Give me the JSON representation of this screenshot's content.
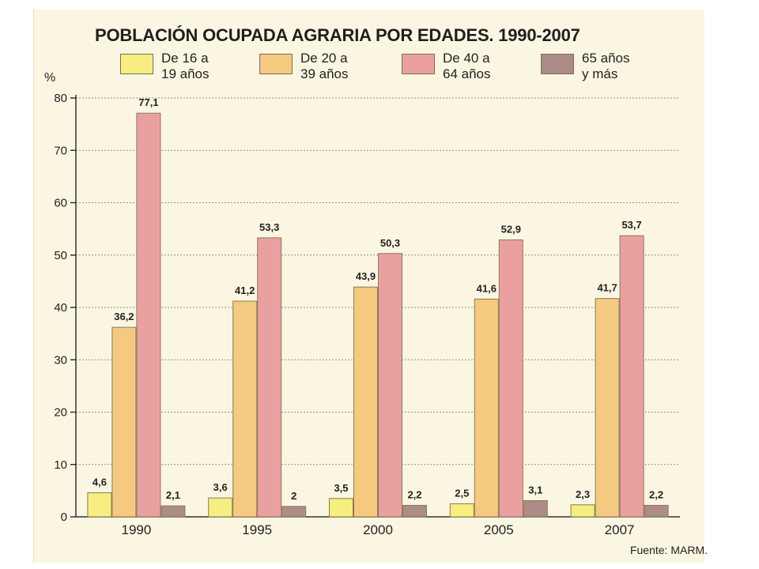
{
  "chart_data": {
    "type": "bar",
    "title": "POBLACIÓN OCUPADA AGRARIA POR EDADES. 1990-2007",
    "ylabel": "%",
    "source": "Fuente: MARM.",
    "categories": [
      "1990",
      "1995",
      "2000",
      "2005",
      "2007"
    ],
    "ylim": [
      0,
      80
    ],
    "yticks": [
      0,
      10,
      20,
      30,
      40,
      50,
      60,
      70,
      80
    ],
    "grid": true,
    "legend_position": "top",
    "series": [
      {
        "name": "De 16 a 19 años",
        "legend_lines": [
          "De 16 a",
          "19 años"
        ],
        "color": "#f6ee7e",
        "values": [
          4.6,
          3.6,
          3.5,
          2.5,
          2.3
        ],
        "labels": [
          "4,6",
          "3,6",
          "3,5",
          "2,5",
          "2,3"
        ]
      },
      {
        "name": "De 20 a 39 años",
        "legend_lines": [
          "De 20 a",
          "39 años"
        ],
        "color": "#f5c97f",
        "values": [
          36.2,
          41.2,
          43.9,
          41.6,
          41.7
        ],
        "labels": [
          "36,2",
          "41,2",
          "43,9",
          "41,6",
          "41,7"
        ]
      },
      {
        "name": "De 40 a 64 años",
        "legend_lines": [
          "De 40 a",
          "64 años"
        ],
        "color": "#eba0a0",
        "values": [
          77.1,
          53.3,
          50.3,
          52.9,
          53.7
        ],
        "labels": [
          "77,1",
          "53,3",
          "50,3",
          "52,9",
          "53,7"
        ]
      },
      {
        "name": "65 años y más",
        "legend_lines": [
          "65 años",
          "y más"
        ],
        "color": "#ab8c86",
        "values": [
          2.1,
          2.0,
          2.2,
          3.1,
          2.2
        ],
        "labels": [
          "2,1",
          "2",
          "2,2",
          "3,1",
          "2,2"
        ]
      }
    ]
  }
}
